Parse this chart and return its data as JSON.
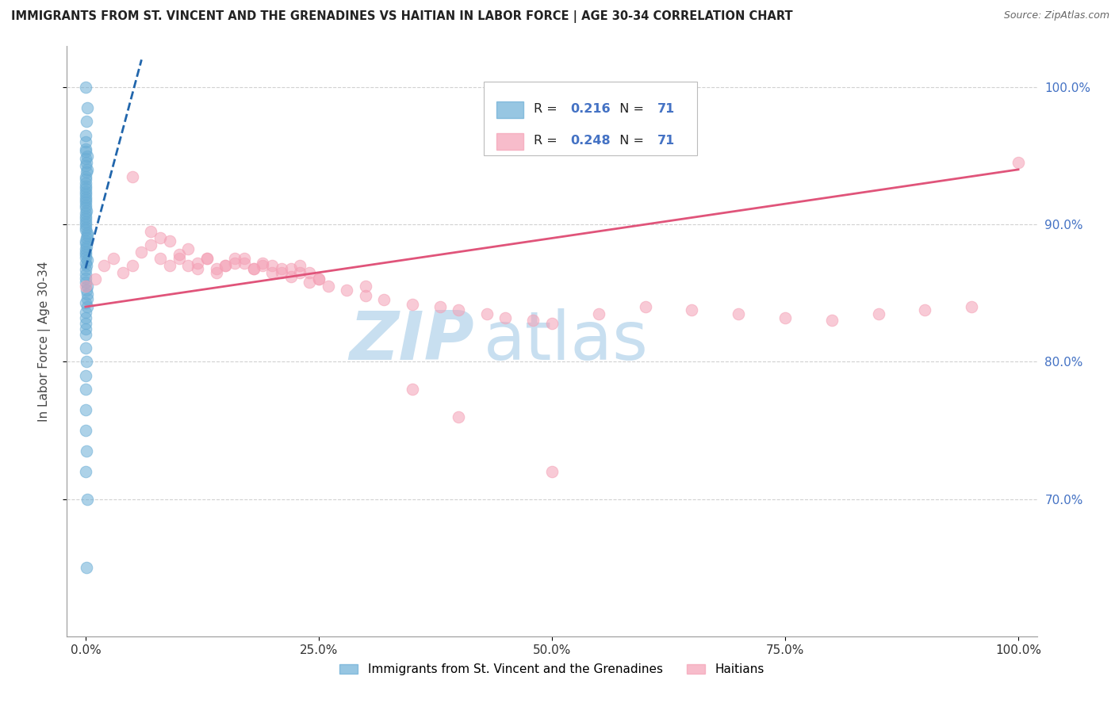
{
  "title": "IMMIGRANTS FROM ST. VINCENT AND THE GRENADINES VS HAITIAN IN LABOR FORCE | AGE 30-34 CORRELATION CHART",
  "source": "Source: ZipAtlas.com",
  "ylabel": "In Labor Force | Age 30-34",
  "legend_label1": "Immigrants from St. Vincent and the Grenadines",
  "legend_label2": "Haitians",
  "R1": "0.216",
  "N1": "71",
  "R2": "0.248",
  "N2": "71",
  "color_blue": "#6baed6",
  "color_pink": "#f4a0b5",
  "trendline_blue": "#2166ac",
  "trendline_pink": "#e0547a",
  "watermark_zip": "ZIP",
  "watermark_atlas": "atlas",
  "watermark_color": "#c8dff0",
  "grid_color": "#cccccc",
  "background_color": "#ffffff",
  "blue_x": [
    0.0,
    0.0,
    0.0,
    0.0,
    0.0,
    0.0,
    0.0,
    0.0,
    0.0,
    0.0,
    0.0,
    0.0,
    0.0,
    0.0,
    0.0,
    0.0,
    0.0,
    0.0,
    0.0,
    0.0,
    0.0,
    0.0,
    0.0,
    0.0,
    0.0,
    0.0,
    0.0,
    0.0,
    0.0,
    0.0,
    0.0,
    0.0,
    0.0,
    0.0,
    0.0,
    0.0,
    0.0,
    0.0,
    0.0,
    0.0,
    0.0,
    0.0,
    0.0,
    0.0,
    0.0,
    0.0,
    0.0,
    0.0,
    0.0,
    0.0,
    0.0,
    0.0,
    0.0,
    0.0,
    0.0,
    0.0,
    0.0,
    0.0,
    0.0,
    0.0,
    0.0,
    0.0,
    0.0,
    0.0,
    0.0,
    0.0,
    0.0,
    0.0,
    0.0,
    0.0,
    0.0
  ],
  "blue_y": [
    1.0,
    0.985,
    0.975,
    0.965,
    0.96,
    0.955,
    0.953,
    0.95,
    0.948,
    0.945,
    0.943,
    0.94,
    0.938,
    0.935,
    0.933,
    0.93,
    0.928,
    0.926,
    0.924,
    0.922,
    0.92,
    0.918,
    0.916,
    0.914,
    0.912,
    0.91,
    0.908,
    0.906,
    0.904,
    0.902,
    0.9,
    0.898,
    0.896,
    0.894,
    0.892,
    0.89,
    0.888,
    0.886,
    0.884,
    0.882,
    0.88,
    0.878,
    0.876,
    0.874,
    0.872,
    0.87,
    0.867,
    0.864,
    0.861,
    0.858,
    0.855,
    0.852,
    0.849,
    0.846,
    0.843,
    0.84,
    0.836,
    0.832,
    0.828,
    0.824,
    0.82,
    0.81,
    0.8,
    0.79,
    0.78,
    0.765,
    0.75,
    0.735,
    0.72,
    0.7,
    0.65
  ],
  "pink_x": [
    0.0,
    0.01,
    0.02,
    0.03,
    0.04,
    0.05,
    0.06,
    0.07,
    0.08,
    0.09,
    0.1,
    0.11,
    0.12,
    0.13,
    0.14,
    0.15,
    0.16,
    0.17,
    0.18,
    0.19,
    0.2,
    0.21,
    0.22,
    0.23,
    0.24,
    0.25,
    0.07,
    0.09,
    0.11,
    0.13,
    0.15,
    0.17,
    0.19,
    0.21,
    0.23,
    0.08,
    0.1,
    0.12,
    0.14,
    0.16,
    0.18,
    0.2,
    0.22,
    0.24,
    0.26,
    0.28,
    0.3,
    0.32,
    0.35,
    0.38,
    0.4,
    0.43,
    0.45,
    0.48,
    0.5,
    0.55,
    0.6,
    0.65,
    0.7,
    0.75,
    0.8,
    0.85,
    0.9,
    0.95,
    1.0,
    0.05,
    0.25,
    0.3,
    0.35,
    0.4,
    0.5
  ],
  "pink_y": [
    0.855,
    0.86,
    0.87,
    0.875,
    0.865,
    0.87,
    0.88,
    0.885,
    0.875,
    0.87,
    0.875,
    0.87,
    0.868,
    0.875,
    0.865,
    0.87,
    0.875,
    0.872,
    0.868,
    0.872,
    0.87,
    0.865,
    0.868,
    0.87,
    0.865,
    0.86,
    0.895,
    0.888,
    0.882,
    0.875,
    0.87,
    0.875,
    0.87,
    0.868,
    0.865,
    0.89,
    0.878,
    0.872,
    0.868,
    0.872,
    0.868,
    0.865,
    0.862,
    0.858,
    0.855,
    0.852,
    0.848,
    0.845,
    0.842,
    0.84,
    0.838,
    0.835,
    0.832,
    0.83,
    0.828,
    0.835,
    0.84,
    0.838,
    0.835,
    0.832,
    0.83,
    0.835,
    0.838,
    0.84,
    0.945,
    0.935,
    0.86,
    0.855,
    0.78,
    0.76,
    0.72
  ],
  "xlim": [
    0.0,
    1.0
  ],
  "ylim": [
    0.6,
    1.03
  ],
  "xticks": [
    0.0,
    0.25,
    0.5,
    0.75,
    1.0
  ],
  "xtick_labels": [
    "0.0%",
    "25.0%",
    "50.0%",
    "75.0%",
    "100.0%"
  ],
  "yticks": [
    0.7,
    0.8,
    0.9,
    1.0
  ],
  "ytick_labels": [
    "70.0%",
    "80.0%",
    "90.0%",
    "100.0%"
  ],
  "pink_trend_x0": 0.0,
  "pink_trend_y0": 0.84,
  "pink_trend_x1": 1.0,
  "pink_trend_y1": 0.94,
  "blue_trend_x0": 0.0,
  "blue_trend_y0": 0.868,
  "blue_trend_x1": 0.06,
  "blue_trend_y1": 1.02
}
